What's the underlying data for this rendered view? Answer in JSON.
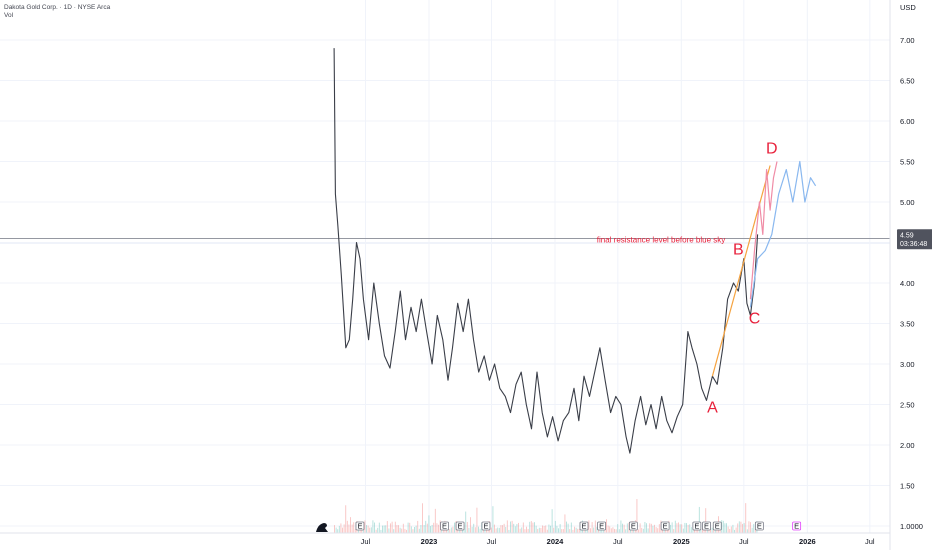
{
  "header": {
    "title": "Dakota Gold Corp. · 1D · NYSE Arca",
    "volume_label": "Vol",
    "currency": "USD"
  },
  "price_badge": {
    "value": "4.59",
    "countdown": "03:36:48"
  },
  "annotation_text": "final resistance level before blue sky",
  "wave_labels": [
    "A",
    "B",
    "C",
    "D"
  ],
  "colors": {
    "price_line": "#3a3e48",
    "resistance_line": "#9598a1",
    "annotation": "#e8213b",
    "trend_line": "#f5a340",
    "projection_pink": "#f08ca6",
    "projection_blue": "#8ab8ef",
    "volume_up": "#26a69a",
    "volume_down": "#ef5350",
    "grid": "#f0f3fa",
    "badge_bg": "#50535e"
  },
  "icons": [
    "dino-icon",
    "earnings-marker-icon"
  ],
  "chart_data": {
    "type": "line",
    "title": "Dakota Gold Corp. · 1D · NYSE Arca",
    "xlabel": "",
    "ylabel": "",
    "ylim": [
      0.8,
      7.4
    ],
    "x_ticks": [
      "Jul",
      "2023",
      "Jul",
      "2024",
      "Jul",
      "2025",
      "Jul",
      "2026",
      "Jul"
    ],
    "y_ticks": [
      "7.00",
      "6.50",
      "6.00",
      "5.50",
      "5.00",
      "4.50",
      "4.00",
      "3.50",
      "3.00",
      "2.50",
      "2.00",
      "1.50",
      "1.0000"
    ],
    "grid": true,
    "series": [
      {
        "points": [
          [
            "2022-04-01",
            6.9
          ],
          [
            "2022-04-05",
            5.1
          ],
          [
            "2022-04-12",
            4.7
          ],
          [
            "2022-04-22",
            4.1
          ],
          [
            "2022-05-05",
            3.2
          ],
          [
            "2022-05-15",
            3.3
          ],
          [
            "2022-05-25",
            3.8
          ],
          [
            "2022-06-05",
            4.5
          ],
          [
            "2022-06-15",
            4.3
          ],
          [
            "2022-06-25",
            3.8
          ],
          [
            "2022-07-10",
            3.3
          ],
          [
            "2022-07-25",
            4.0
          ],
          [
            "2022-08-10",
            3.5
          ],
          [
            "2022-08-25",
            3.1
          ],
          [
            "2022-09-10",
            2.95
          ],
          [
            "2022-09-25",
            3.4
          ],
          [
            "2022-10-10",
            3.9
          ],
          [
            "2022-10-25",
            3.3
          ],
          [
            "2022-11-10",
            3.7
          ],
          [
            "2022-11-25",
            3.4
          ],
          [
            "2022-12-10",
            3.8
          ],
          [
            "2022-12-25",
            3.4
          ],
          [
            "2023-01-10",
            3.0
          ],
          [
            "2023-01-25",
            3.6
          ],
          [
            "2023-02-10",
            3.3
          ],
          [
            "2023-02-25",
            2.8
          ],
          [
            "2023-03-10",
            3.2
          ],
          [
            "2023-03-25",
            3.75
          ],
          [
            "2023-04-10",
            3.4
          ],
          [
            "2023-04-25",
            3.8
          ],
          [
            "2023-05-10",
            3.3
          ],
          [
            "2023-05-25",
            2.9
          ],
          [
            "2023-06-10",
            3.1
          ],
          [
            "2023-06-25",
            2.8
          ],
          [
            "2023-07-10",
            3.0
          ],
          [
            "2023-07-25",
            2.7
          ],
          [
            "2023-08-10",
            2.6
          ],
          [
            "2023-08-25",
            2.4
          ],
          [
            "2023-09-10",
            2.75
          ],
          [
            "2023-09-25",
            2.9
          ],
          [
            "2023-10-10",
            2.5
          ],
          [
            "2023-10-25",
            2.2
          ],
          [
            "2023-11-10",
            2.9
          ],
          [
            "2023-11-25",
            2.4
          ],
          [
            "2023-12-10",
            2.1
          ],
          [
            "2023-12-25",
            2.35
          ],
          [
            "2024-01-10",
            2.05
          ],
          [
            "2024-01-25",
            2.3
          ],
          [
            "2024-02-10",
            2.4
          ],
          [
            "2024-02-25",
            2.7
          ],
          [
            "2024-03-10",
            2.3
          ],
          [
            "2024-03-25",
            2.85
          ],
          [
            "2024-04-10",
            2.6
          ],
          [
            "2024-04-25",
            2.9
          ],
          [
            "2024-05-10",
            3.2
          ],
          [
            "2024-05-25",
            2.8
          ],
          [
            "2024-06-10",
            2.4
          ],
          [
            "2024-06-25",
            2.6
          ],
          [
            "2024-07-10",
            2.5
          ],
          [
            "2024-07-25",
            2.1
          ],
          [
            "2024-08-05",
            1.9
          ],
          [
            "2024-08-20",
            2.3
          ],
          [
            "2024-09-05",
            2.6
          ],
          [
            "2024-09-20",
            2.25
          ],
          [
            "2024-10-05",
            2.5
          ],
          [
            "2024-10-20",
            2.2
          ],
          [
            "2024-11-05",
            2.6
          ],
          [
            "2024-11-20",
            2.3
          ],
          [
            "2024-12-05",
            2.15
          ],
          [
            "2024-12-20",
            2.35
          ],
          [
            "2025-01-05",
            2.5
          ],
          [
            "2025-01-20",
            3.4
          ],
          [
            "2025-02-01",
            3.2
          ],
          [
            "2025-02-15",
            3.0
          ],
          [
            "2025-03-01",
            2.7
          ],
          [
            "2025-03-15",
            2.55
          ],
          [
            "2025-04-01",
            2.85
          ],
          [
            "2025-04-15",
            2.75
          ],
          [
            "2025-05-01",
            3.2
          ],
          [
            "2025-05-15",
            3.8
          ],
          [
            "2025-06-01",
            4.0
          ],
          [
            "2025-06-15",
            3.9
          ],
          [
            "2025-07-01",
            4.3
          ],
          [
            "2025-07-10",
            3.75
          ],
          [
            "2025-07-20",
            3.6
          ],
          [
            "2025-08-01",
            4.0
          ],
          [
            "2025-08-10",
            4.6
          ]
        ]
      },
      {
        "points": [
          [
            "2025-04-01",
            2.85
          ],
          [
            "2025-09-15",
            5.45
          ]
        ]
      },
      {
        "points": [
          [
            "2025-07-20",
            3.8
          ],
          [
            "2025-08-01",
            4.4
          ],
          [
            "2025-08-15",
            5.0
          ],
          [
            "2025-08-25",
            4.6
          ],
          [
            "2025-09-05",
            5.4
          ],
          [
            "2025-09-15",
            4.9
          ],
          [
            "2025-09-25",
            5.3
          ],
          [
            "2025-10-05",
            5.5
          ]
        ]
      },
      {
        "points": [
          [
            "2025-07-20",
            3.7
          ],
          [
            "2025-08-10",
            4.3
          ],
          [
            "2025-09-01",
            4.4
          ],
          [
            "2025-09-20",
            4.6
          ],
          [
            "2025-10-10",
            5.1
          ],
          [
            "2025-11-01",
            5.4
          ],
          [
            "2025-11-20",
            5.0
          ],
          [
            "2025-12-10",
            5.5
          ],
          [
            "2025-12-25",
            5.0
          ],
          [
            "2026-01-10",
            5.3
          ],
          [
            "2026-01-25",
            5.2
          ]
        ]
      }
    ],
    "horizontal_line": 4.55,
    "annotations": [
      {
        "text": "A",
        "x": "2025-04-01",
        "y": 2.4
      },
      {
        "text": "B",
        "x": "2025-06-15",
        "y": 4.35
      },
      {
        "text": "C",
        "x": "2025-08-01",
        "y": 3.5
      },
      {
        "text": "D",
        "x": "2025-09-20",
        "y": 5.6
      },
      {
        "text": "final resistance level before blue sky",
        "x": "2024-05-01",
        "y": 4.5
      }
    ],
    "earnings_markers": [
      {
        "date": "2022-06-15",
        "type": "E"
      },
      {
        "date": "2023-02-15",
        "type": "E"
      },
      {
        "date": "2023-04-01",
        "type": "E"
      },
      {
        "date": "2023-06-15",
        "type": "E"
      },
      {
        "date": "2024-03-25",
        "type": "E"
      },
      {
        "date": "2024-05-15",
        "type": "E"
      },
      {
        "date": "2024-08-15",
        "type": "E"
      },
      {
        "date": "2024-11-15",
        "type": "E"
      },
      {
        "date": "2025-02-15",
        "type": "E"
      },
      {
        "date": "2025-03-15",
        "type": "E"
      },
      {
        "date": "2025-04-15",
        "type": "E"
      },
      {
        "date": "2025-08-15",
        "type": "E"
      },
      {
        "date": "2025-12-01",
        "type": "E"
      }
    ],
    "current_price": 4.59
  }
}
